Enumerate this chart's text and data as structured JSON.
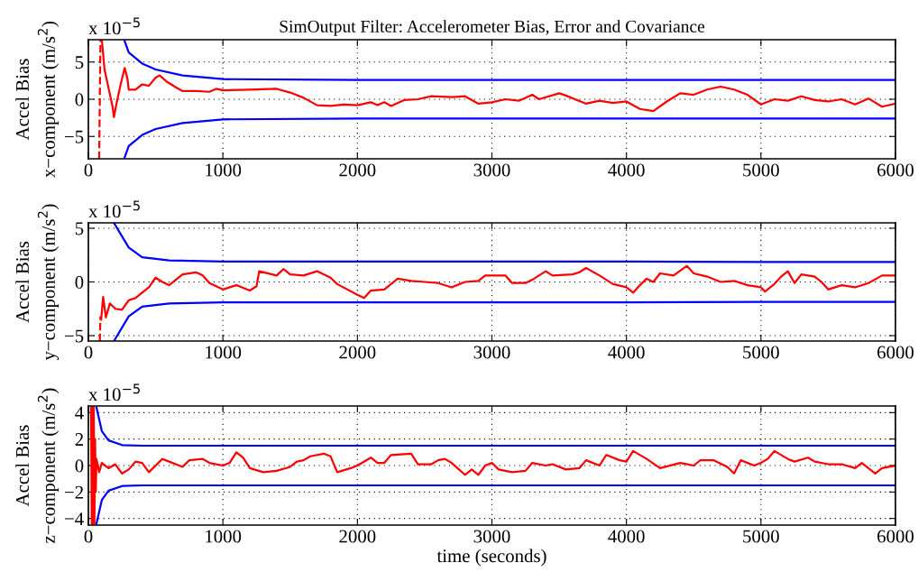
{
  "chart_data": [
    {
      "type": "line",
      "title": "SimOutput Filter: Accelerometer Bias, Error and Covariance",
      "ylabel": "Accel Bias\nx−component (m/s$^{2}$)",
      "annotations": [
        "x 10$^{−5}$"
      ],
      "xlim": [
        0,
        6000
      ],
      "xticks": [
        0,
        1000,
        2000,
        3000,
        4000,
        5000,
        6000
      ],
      "ylim": [
        -8,
        8
      ],
      "yticks": [
        {
          "value": -5,
          "label": "−5"
        },
        0,
        5
      ],
      "grid": true,
      "line_style": "solid",
      "marker": "none",
      "series": [
        {
          "color": "#0000ff",
          "x": [
            270,
            300,
            400,
            500,
            700,
            1000,
            2000,
            3000,
            4000,
            5000,
            6000
          ],
          "values": [
            7.8,
            6.3,
            4.8,
            4.0,
            3.2,
            2.7,
            2.6,
            2.6,
            2.6,
            2.6,
            2.6
          ]
        },
        {
          "color": "#0000ff",
          "x": [
            270,
            300,
            400,
            500,
            700,
            1000,
            2000,
            3000,
            4000,
            5000,
            6000
          ],
          "values": [
            -7.8,
            -6.3,
            -4.8,
            -4.0,
            -3.2,
            -2.7,
            -2.6,
            -2.6,
            -2.6,
            -2.6,
            -2.6
          ]
        },
        {
          "color": "#ff0000",
          "line_style": "dashed",
          "x": [
            80,
            90
          ],
          "values": [
            -8,
            8
          ]
        },
        {
          "color": "#ff0000",
          "x": [
            100,
            120,
            150,
            180,
            190,
            210,
            240,
            270,
            290,
            300,
            350,
            400,
            450,
            500,
            530,
            580,
            650,
            700,
            800,
            900,
            950,
            1000,
            1200,
            1400,
            1500,
            1600,
            1700,
            1800,
            1900,
            2000,
            2100,
            2150,
            2200,
            2250,
            2350,
            2450,
            2550,
            2700,
            2800,
            2900,
            3000,
            3100,
            3200,
            3300,
            3350,
            3500,
            3550,
            3700,
            3800,
            3900,
            4000,
            4100,
            4200,
            4300,
            4400,
            4500,
            4600,
            4700,
            4800,
            4900,
            5000,
            5100,
            5200,
            5300,
            5400,
            5500,
            5600,
            5700,
            5800,
            5900,
            6000
          ],
          "values": [
            8,
            4,
            1.5,
            -1,
            -2.4,
            -0.5,
            2,
            4.2,
            2.8,
            1.3,
            1.3,
            2.0,
            1.8,
            2.9,
            3.2,
            2.4,
            1.6,
            1.1,
            1.1,
            1.0,
            1.4,
            1.2,
            1.3,
            1.4,
            0.9,
            0.2,
            -0.8,
            -0.9,
            -0.7,
            -0.8,
            -0.4,
            -0.8,
            -0.4,
            -0.9,
            -0.1,
            0.0,
            0.4,
            0.3,
            0.4,
            -0.6,
            -0.4,
            0.0,
            -0.2,
            0.6,
            0.0,
            0.8,
            0.5,
            -0.6,
            -0.2,
            -0.5,
            -0.3,
            -1.3,
            -1.6,
            -0.3,
            0.8,
            0.6,
            1.3,
            1.7,
            1.3,
            0.6,
            -0.7,
            0.0,
            -0.2,
            0.4,
            -0.1,
            -0.3,
            0.0,
            -0.7,
            0.1,
            -1.0,
            -0.6
          ]
        }
      ]
    },
    {
      "type": "line",
      "ylabel": "Accel Bias\ny−component (m/s$^{2}$)",
      "annotations": [
        "x 10$^{−5}$"
      ],
      "xlim": [
        0,
        6000
      ],
      "xticks": [
        0,
        1000,
        2000,
        3000,
        4000,
        5000,
        6000
      ],
      "ylim": [
        -5.5,
        5.5
      ],
      "yticks": [
        {
          "value": -5,
          "label": "−5"
        },
        0,
        5
      ],
      "grid": true,
      "line_style": "solid",
      "marker": "none",
      "series": [
        {
          "color": "#0000ff",
          "x": [
            190,
            300,
            400,
            600,
            1000,
            2000,
            3000,
            4000,
            5000,
            6000
          ],
          "values": [
            5.5,
            3.2,
            2.3,
            2.0,
            1.9,
            1.9,
            1.9,
            1.9,
            1.85,
            1.85
          ]
        },
        {
          "color": "#0000ff",
          "x": [
            190,
            300,
            400,
            600,
            1000,
            2000,
            3000,
            4000,
            5000,
            6000
          ],
          "values": [
            -5.5,
            -3.2,
            -2.3,
            -2.0,
            -1.9,
            -1.9,
            -1.9,
            -1.9,
            -1.85,
            -1.85
          ]
        },
        {
          "color": "#ff0000",
          "line_style": "dashed",
          "x": [
            85,
            90
          ],
          "values": [
            -5.5,
            -3.2
          ]
        },
        {
          "color": "#ff0000",
          "x": [
            95,
            110,
            130,
            160,
            200,
            250,
            300,
            350,
            400,
            450,
            500,
            550,
            600,
            700,
            800,
            850,
            900,
            1000,
            1100,
            1200,
            1250,
            1270,
            1400,
            1450,
            1500,
            1600,
            1700,
            1800,
            1850,
            2000,
            2050,
            2100,
            2200,
            2300,
            2400,
            2500,
            2600,
            2700,
            2800,
            2900,
            2950,
            3000,
            3100,
            3150,
            3250,
            3300,
            3400,
            3450,
            3600,
            3650,
            3700,
            3800,
            3900,
            4000,
            4050,
            4100,
            4150,
            4200,
            4250,
            4350,
            4450,
            4500,
            4600,
            4700,
            4800,
            4900,
            5000,
            5030,
            5100,
            5150,
            5200,
            5250,
            5300,
            5400,
            5450,
            5500,
            5600,
            5700,
            5800,
            5900,
            6000
          ],
          "values": [
            -3.5,
            -1.4,
            -3.3,
            -2.0,
            -2.5,
            -2.6,
            -1.7,
            -1.5,
            -1.0,
            -0.5,
            0.4,
            0.0,
            -0.3,
            0.7,
            0.9,
            0.6,
            -0.1,
            -0.7,
            -0.3,
            -0.8,
            -0.4,
            1.0,
            0.6,
            1.2,
            0.7,
            0.6,
            1.0,
            0.4,
            -0.2,
            -1.2,
            -1.5,
            -0.8,
            -0.7,
            0.3,
            0.1,
            0.0,
            -0.1,
            -0.5,
            0.0,
            0.1,
            0.6,
            0.6,
            0.6,
            -0.1,
            -0.1,
            0.2,
            1.0,
            0.6,
            0.7,
            0.9,
            1.3,
            0.6,
            -0.2,
            -0.5,
            -1.0,
            -0.3,
            0.3,
            0.0,
            0.8,
            0.6,
            1.5,
            0.8,
            0.5,
            0.0,
            0.1,
            -0.3,
            -0.5,
            -0.9,
            -0.2,
            0.5,
            1.0,
            -0.1,
            0.7,
            0.5,
            0.0,
            -0.7,
            -0.3,
            -0.5,
            -0.1,
            0.6,
            0.6
          ]
        }
      ]
    },
    {
      "type": "line",
      "xlabel": "time (seconds)",
      "ylabel": "Accel Bias\nz−component (m/s$^{2}$)",
      "annotations": [
        "x 10$^{−5}$"
      ],
      "xlim": [
        0,
        6000
      ],
      "xticks": [
        0,
        1000,
        2000,
        3000,
        4000,
        5000,
        6000
      ],
      "ylim": [
        -4.5,
        4.5
      ],
      "yticks": [
        {
          "value": -4,
          "label": "−4"
        },
        {
          "value": -2,
          "label": "−2"
        },
        0,
        2,
        4
      ],
      "grid": true,
      "line_style": "solid",
      "marker": "none",
      "series": [
        {
          "color": "#0000ff",
          "x": [
            60,
            100,
            150,
            250,
            400,
            1000,
            2000,
            3000,
            4000,
            5000,
            6000
          ],
          "values": [
            4.4,
            2.6,
            1.9,
            1.55,
            1.5,
            1.5,
            1.5,
            1.5,
            1.5,
            1.5,
            1.5
          ]
        },
        {
          "color": "#0000ff",
          "x": [
            60,
            100,
            150,
            250,
            400,
            1000,
            2000,
            3000,
            4000,
            5000,
            6000
          ],
          "values": [
            -4.4,
            -2.6,
            -1.9,
            -1.55,
            -1.5,
            -1.5,
            -1.5,
            -1.5,
            -1.5,
            -1.5,
            -1.5
          ]
        },
        {
          "color": "#ff0000",
          "x": [
            20,
            25,
            30,
            35,
            40,
            45,
            50,
            55,
            60,
            80,
            100,
            150,
            200,
            250,
            300,
            350,
            400,
            450,
            550,
            600,
            650,
            700,
            750,
            850,
            900,
            1000,
            1050,
            1100,
            1150,
            1200,
            1300,
            1400,
            1500,
            1550,
            1600,
            1650,
            1750,
            1800,
            1850,
            1950,
            2000,
            2100,
            2150,
            2200,
            2250,
            2400,
            2450,
            2550,
            2600,
            2650,
            2700,
            2800,
            2850,
            2900,
            2950,
            3000,
            3050,
            3150,
            3250,
            3300,
            3400,
            3450,
            3550,
            3650,
            3700,
            3800,
            3850,
            3950,
            4000,
            4050,
            4150,
            4250,
            4400,
            4500,
            4550,
            4650,
            4750,
            4800,
            4850,
            4950,
            5000,
            5050,
            5100,
            5200,
            5250,
            5350,
            5400,
            5500,
            5600,
            5700,
            5750,
            5850,
            5900,
            6000
          ],
          "values": [
            4.4,
            -4.4,
            4.4,
            -4.4,
            4.4,
            -4.4,
            2.0,
            -2.0,
            0.5,
            -0.5,
            0.2,
            -0.2,
            0.1,
            -0.6,
            -0.3,
            0.3,
            0.2,
            -0.5,
            0.5,
            0.3,
            0.1,
            -0.1,
            0.4,
            0.5,
            0.2,
            0.0,
            0.2,
            1.0,
            0.6,
            -0.2,
            -0.5,
            -0.4,
            -0.1,
            0.3,
            0.4,
            0.7,
            0.9,
            0.7,
            -0.5,
            -0.2,
            0.0,
            0.6,
            0.2,
            0.2,
            0.8,
            0.9,
            0.1,
            0.1,
            0.4,
            0.5,
            0.2,
            -0.7,
            -0.3,
            -0.7,
            0.0,
            0.2,
            -0.3,
            -0.5,
            -0.4,
            0.2,
            0.0,
            0.1,
            -0.3,
            -0.2,
            0.4,
            0.0,
            0.8,
            0.4,
            0.3,
            1.1,
            0.5,
            -0.2,
            0.2,
            0.0,
            0.4,
            0.4,
            -0.1,
            -0.6,
            0.4,
            0.0,
            0.2,
            0.5,
            1.1,
            0.5,
            0.3,
            0.6,
            0.3,
            0.1,
            0.1,
            -0.2,
            0.2,
            -0.6,
            -0.2,
            0.0
          ]
        }
      ]
    }
  ]
}
